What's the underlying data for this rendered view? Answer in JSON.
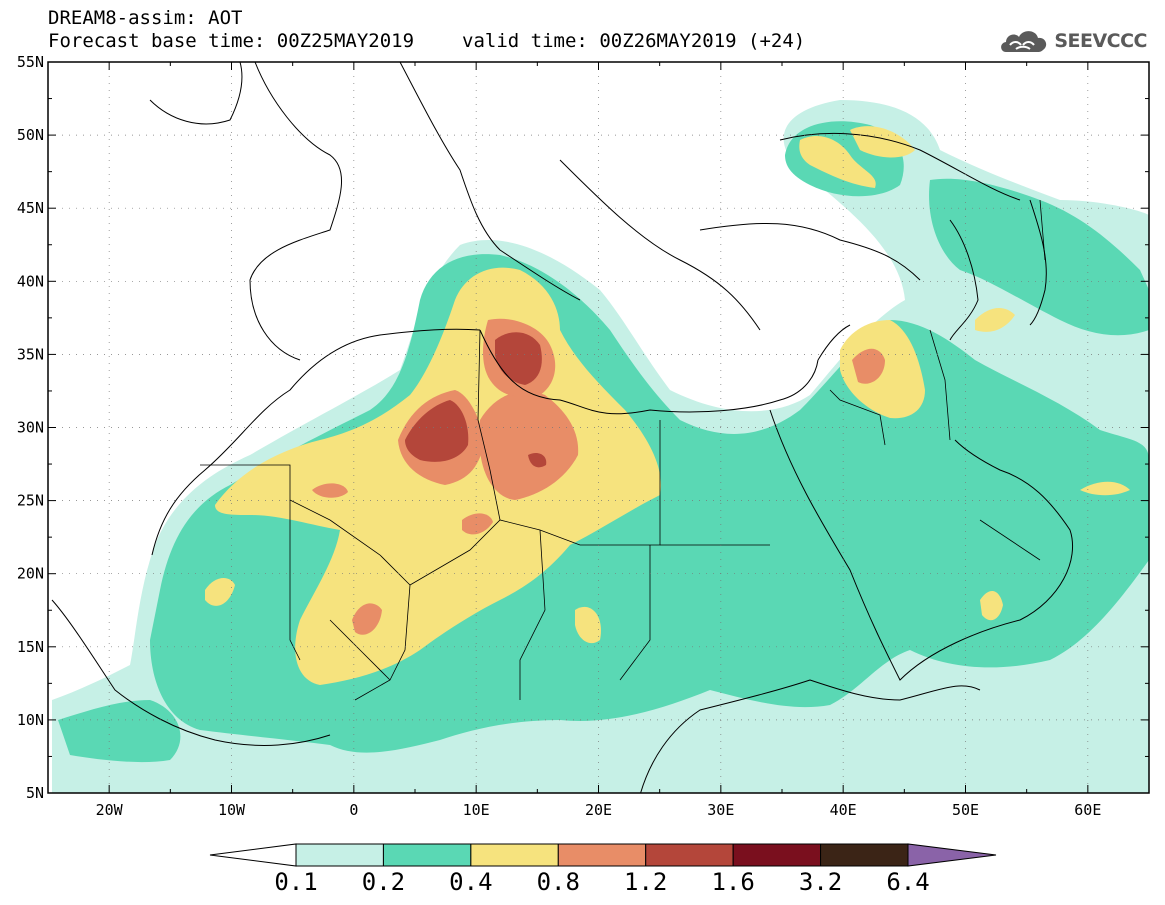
{
  "header": {
    "title": "DREAM8-assim: AOT",
    "base_label": "Forecast base time: 00Z25MAY2019",
    "valid_label": "valid time: 00Z26MAY2019 (+24)"
  },
  "logo": {
    "text": "SEEVCCC",
    "icon": "cloud-icon"
  },
  "map": {
    "lon_range": [
      -25,
      65
    ],
    "lat_range": [
      5,
      55
    ],
    "lat_ticks": [
      "55N",
      "50N",
      "45N",
      "40N",
      "35N",
      "30N",
      "25N",
      "20N",
      "15N",
      "10N",
      "5N"
    ],
    "lon_ticks": [
      "20W",
      "10W",
      "0",
      "10E",
      "20E",
      "30E",
      "40E",
      "50E",
      "60E"
    ]
  },
  "colorbar": {
    "labels": [
      "0.1",
      "0.2",
      "0.4",
      "0.8",
      "1.2",
      "1.6",
      "3.2",
      "6.4"
    ],
    "colors": [
      "#ffffff",
      "#c6f0e6",
      "#5ad8b4",
      "#f6e37e",
      "#e88d67",
      "#b4463a",
      "#7a0f1e",
      "#3b2416",
      "#8a63a8"
    ]
  }
}
